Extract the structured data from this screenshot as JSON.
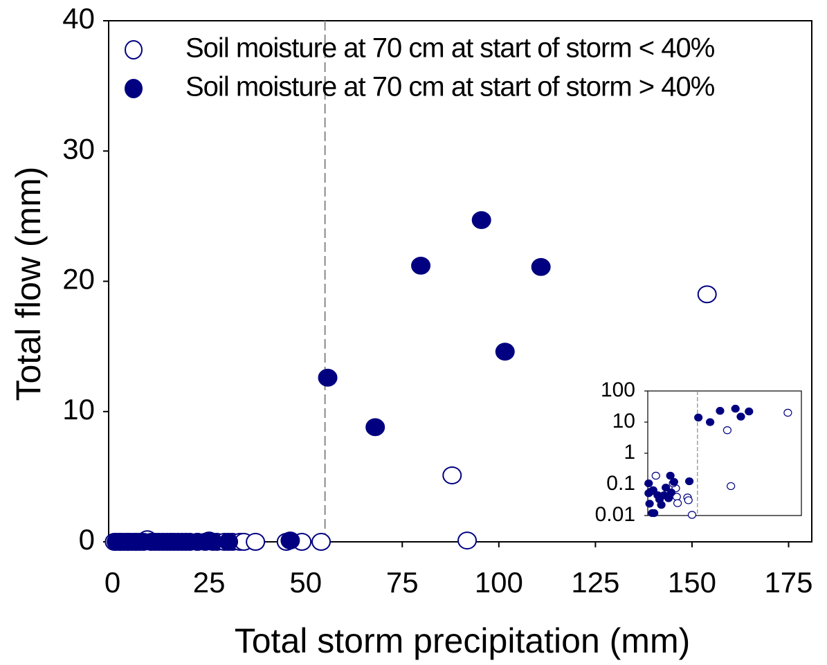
{
  "chart_data": [
    {
      "type": "scatter",
      "xlabel": "Total storm precipitation (mm)",
      "ylabel": "Total flow (mm)",
      "xlim": [
        -1,
        181
      ],
      "ylim": [
        0,
        40
      ],
      "xticks": [
        0,
        25,
        50,
        75,
        100,
        125,
        150,
        175
      ],
      "yticks": [
        0,
        10,
        20,
        30,
        40
      ],
      "vline": 55,
      "legend": "upper left",
      "series": [
        {
          "name": "Soil moisture at 70 cm at start of storm < 40%",
          "color": "#000080",
          "filled": false,
          "x": [
            0.5,
            2,
            4,
            6,
            9,
            12,
            15,
            18,
            22,
            27,
            29,
            31,
            33,
            34,
            37,
            45,
            49,
            54,
            87.9,
            91.8,
            153.9
          ],
          "values": [
            0,
            0,
            0,
            0,
            0.2,
            0,
            0,
            0,
            0,
            0,
            0,
            0,
            0,
            0,
            0,
            0,
            0,
            0,
            5.1,
            0.1,
            19
          ]
        },
        {
          "name": "Soil moisture at 70 cm at start of storm > 40%",
          "color": "#000080",
          "filled": true,
          "x": [
            1,
            2,
            3,
            4,
            5,
            6,
            7,
            8,
            10,
            11,
            13,
            14,
            16,
            17,
            19,
            20,
            22,
            24,
            25,
            26,
            30,
            46,
            55.7,
            68,
            79.8,
            95.5,
            101.6,
            110.9
          ],
          "values": [
            0,
            0,
            0,
            0,
            0,
            0,
            0,
            0,
            0,
            0,
            0,
            0,
            0,
            0,
            0,
            0,
            0,
            0,
            0.1,
            0,
            0,
            0.1,
            12.6,
            8.8,
            21.2,
            24.7,
            14.6,
            21.1
          ]
        }
      ]
    },
    {
      "type": "scatter",
      "ylog": true,
      "xlim": [
        0,
        170
      ],
      "ylim": [
        0.01,
        100
      ],
      "yticks": [
        0.01,
        0.1,
        1,
        10,
        100
      ],
      "vline": 55,
      "series": [
        {
          "color": "#000080",
          "filled": false,
          "x": [
            9,
            49,
            44,
            45,
            32,
            33,
            31,
            28,
            88,
            92,
            155
          ],
          "values": [
            0.19,
            0.0105,
            0.038,
            0.031,
            0.04,
            0.025,
            0.075,
            0.108,
            5.5,
            0.088,
            20
          ]
        },
        {
          "color": "#000080",
          "filled": true,
          "x": [
            1,
            3,
            5,
            7,
            2,
            1,
            11,
            13,
            15,
            18,
            20,
            23,
            25,
            26,
            29,
            46,
            6,
            56,
            69,
            80,
            97,
            103,
            112
          ],
          "values": [
            0.108,
            0.058,
            0.012,
            0.012,
            0.024,
            0.052,
            0.045,
            0.033,
            0.022,
            0.045,
            0.079,
            0.036,
            0.19,
            0.055,
            0.12,
            0.126,
            0.065,
            14,
            10,
            23,
            27,
            15,
            22
          ]
        }
      ]
    }
  ]
}
